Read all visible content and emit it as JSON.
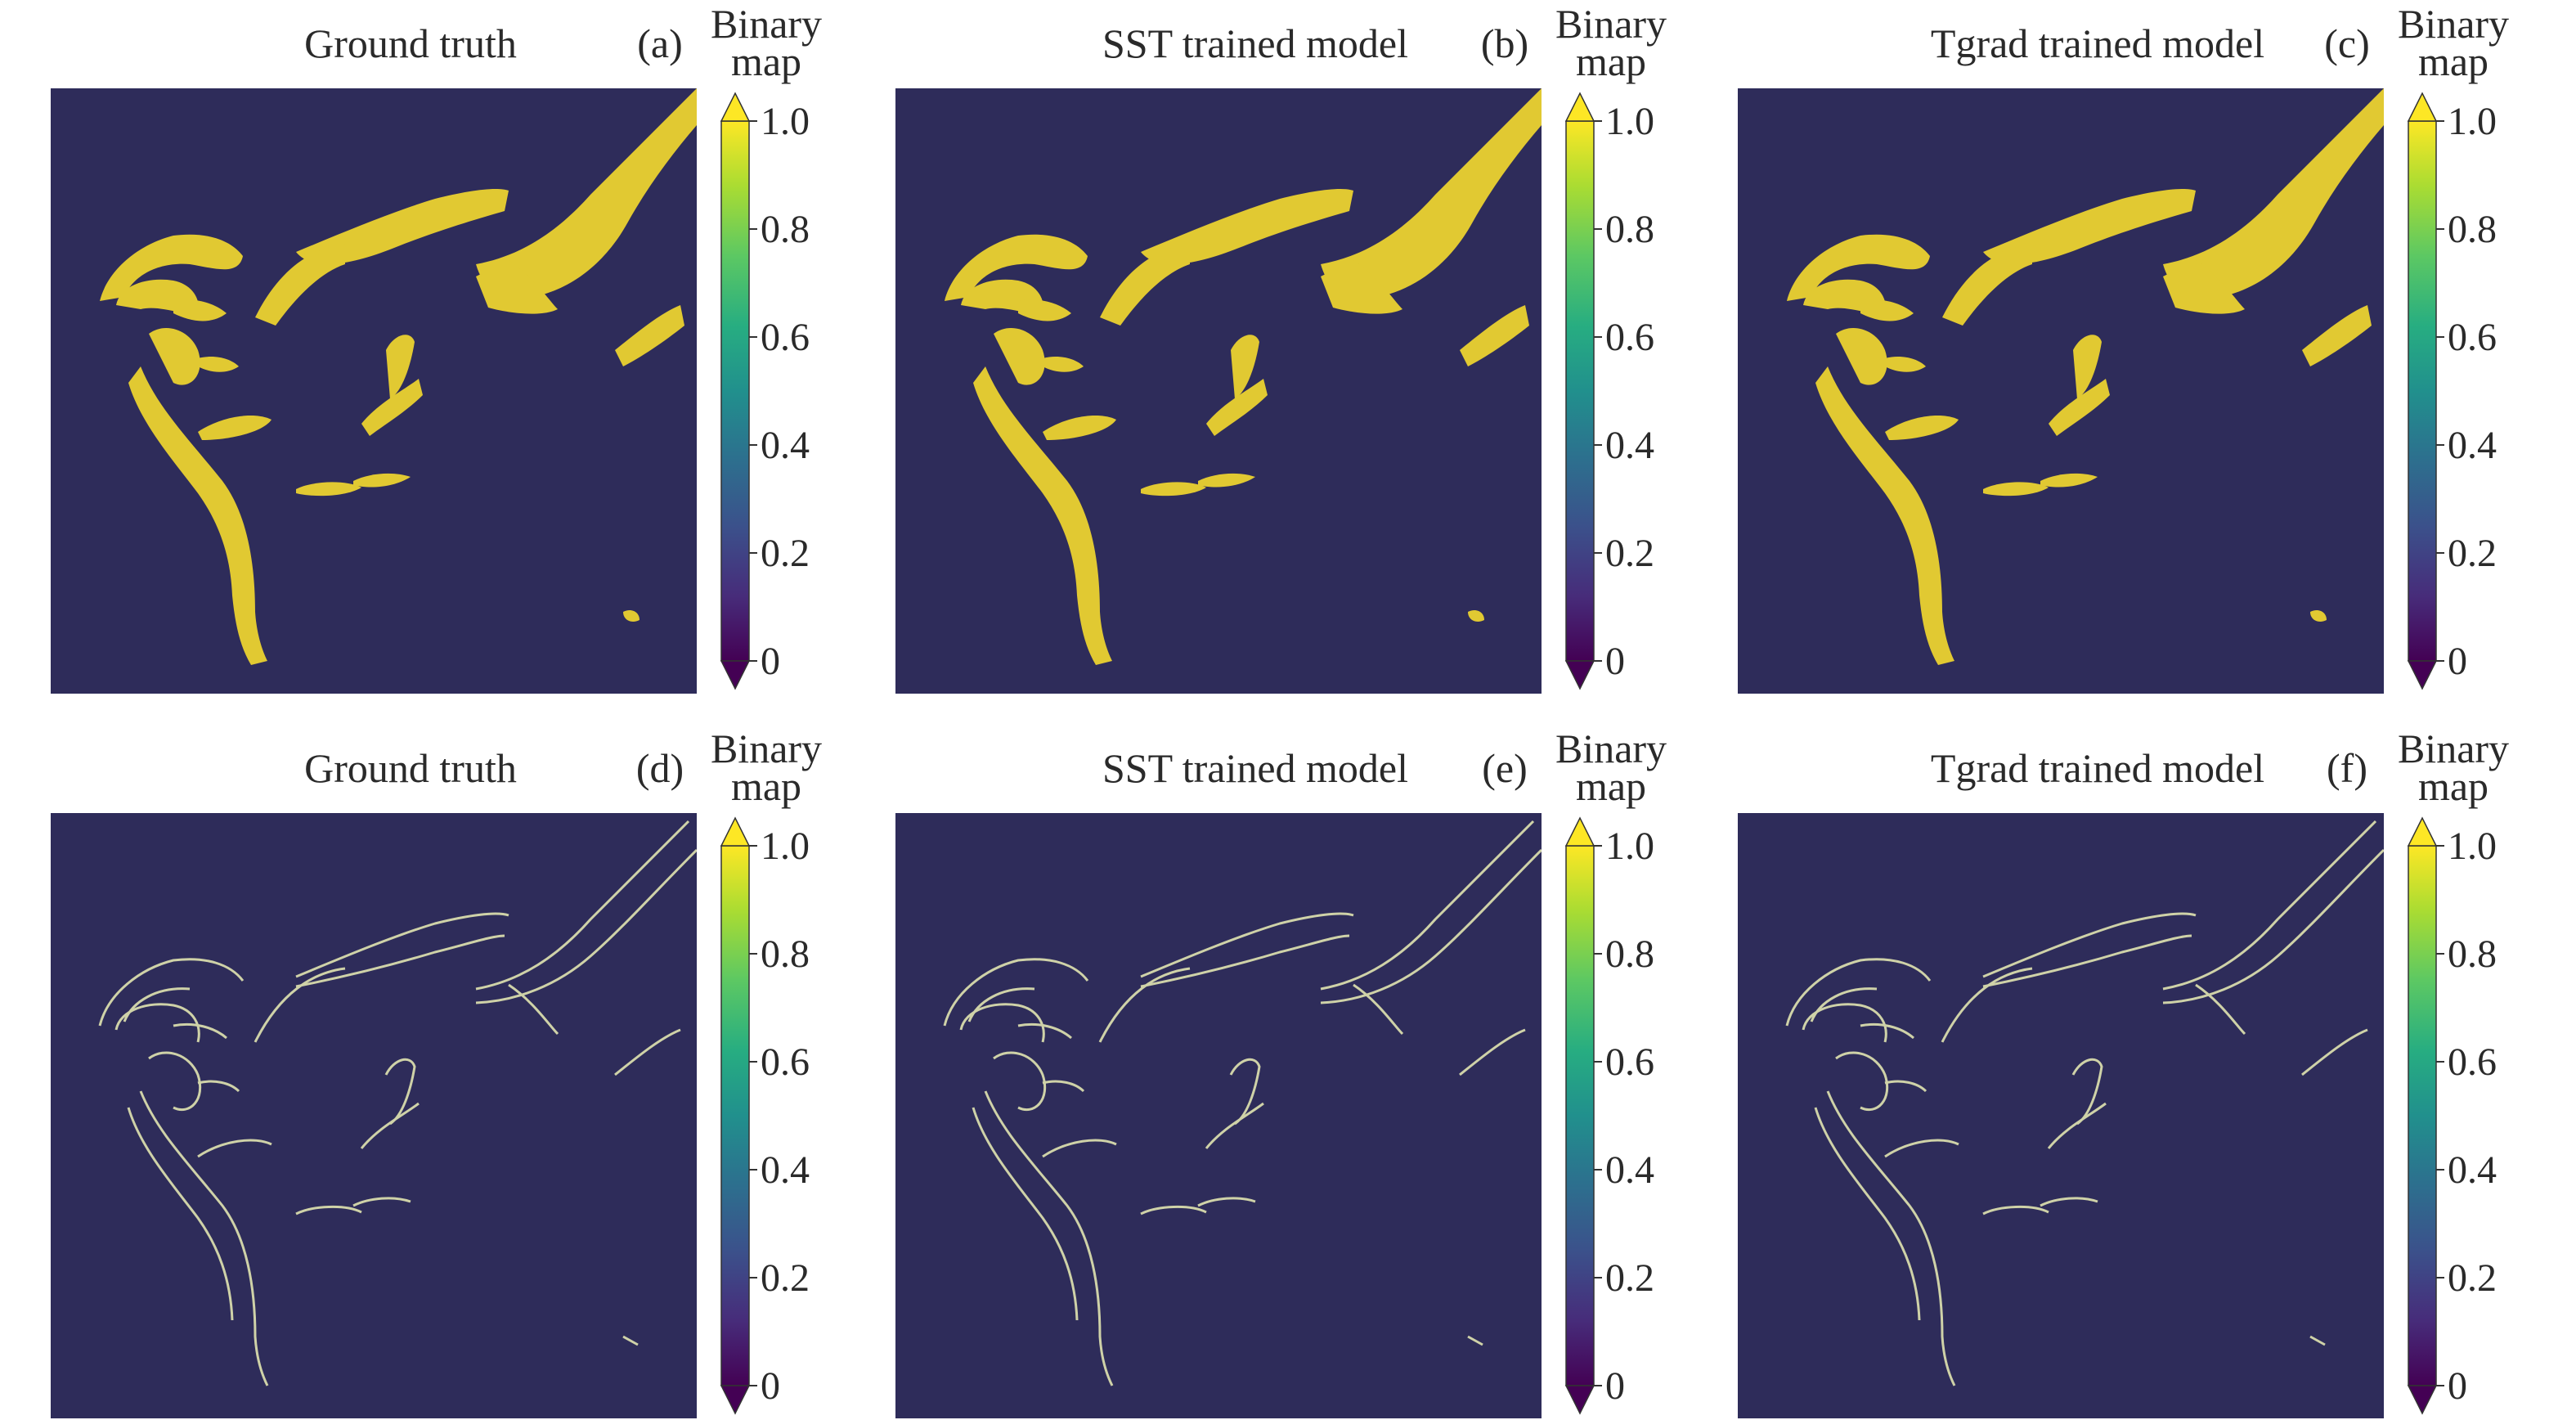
{
  "figure": {
    "panels": [
      {
        "label": "(a)",
        "title": "Ground truth",
        "kind": "fill"
      },
      {
        "label": "(b)",
        "title": "SST trained model",
        "kind": "fill"
      },
      {
        "label": "(c)",
        "title": "Tgrad trained model",
        "kind": "fill"
      },
      {
        "label": "(d)",
        "title": "Ground truth",
        "kind": "edge"
      },
      {
        "label": "(e)",
        "title": "SST trained model",
        "kind": "edge"
      },
      {
        "label": "(f)",
        "title": "Tgrad trained model",
        "kind": "edge"
      }
    ],
    "colorbar": {
      "label_line1": "Binary",
      "label_line2": "map",
      "ticks": [
        "0",
        "0.2",
        "0.4",
        "0.6",
        "0.8",
        "1.0"
      ],
      "tick_values": [
        0,
        0.2,
        0.4,
        0.6,
        0.8,
        1.0
      ],
      "colormap": "viridis",
      "extend": "both"
    },
    "colors": {
      "background": "#2e2c5a",
      "front": "#e1c932",
      "edge_line": "#cfd2a8"
    }
  },
  "chart_data": {
    "type": "heatmap",
    "value_range": [
      0,
      1
    ],
    "values": "binary (0 = no front, 1 = front)",
    "grid": false
  }
}
